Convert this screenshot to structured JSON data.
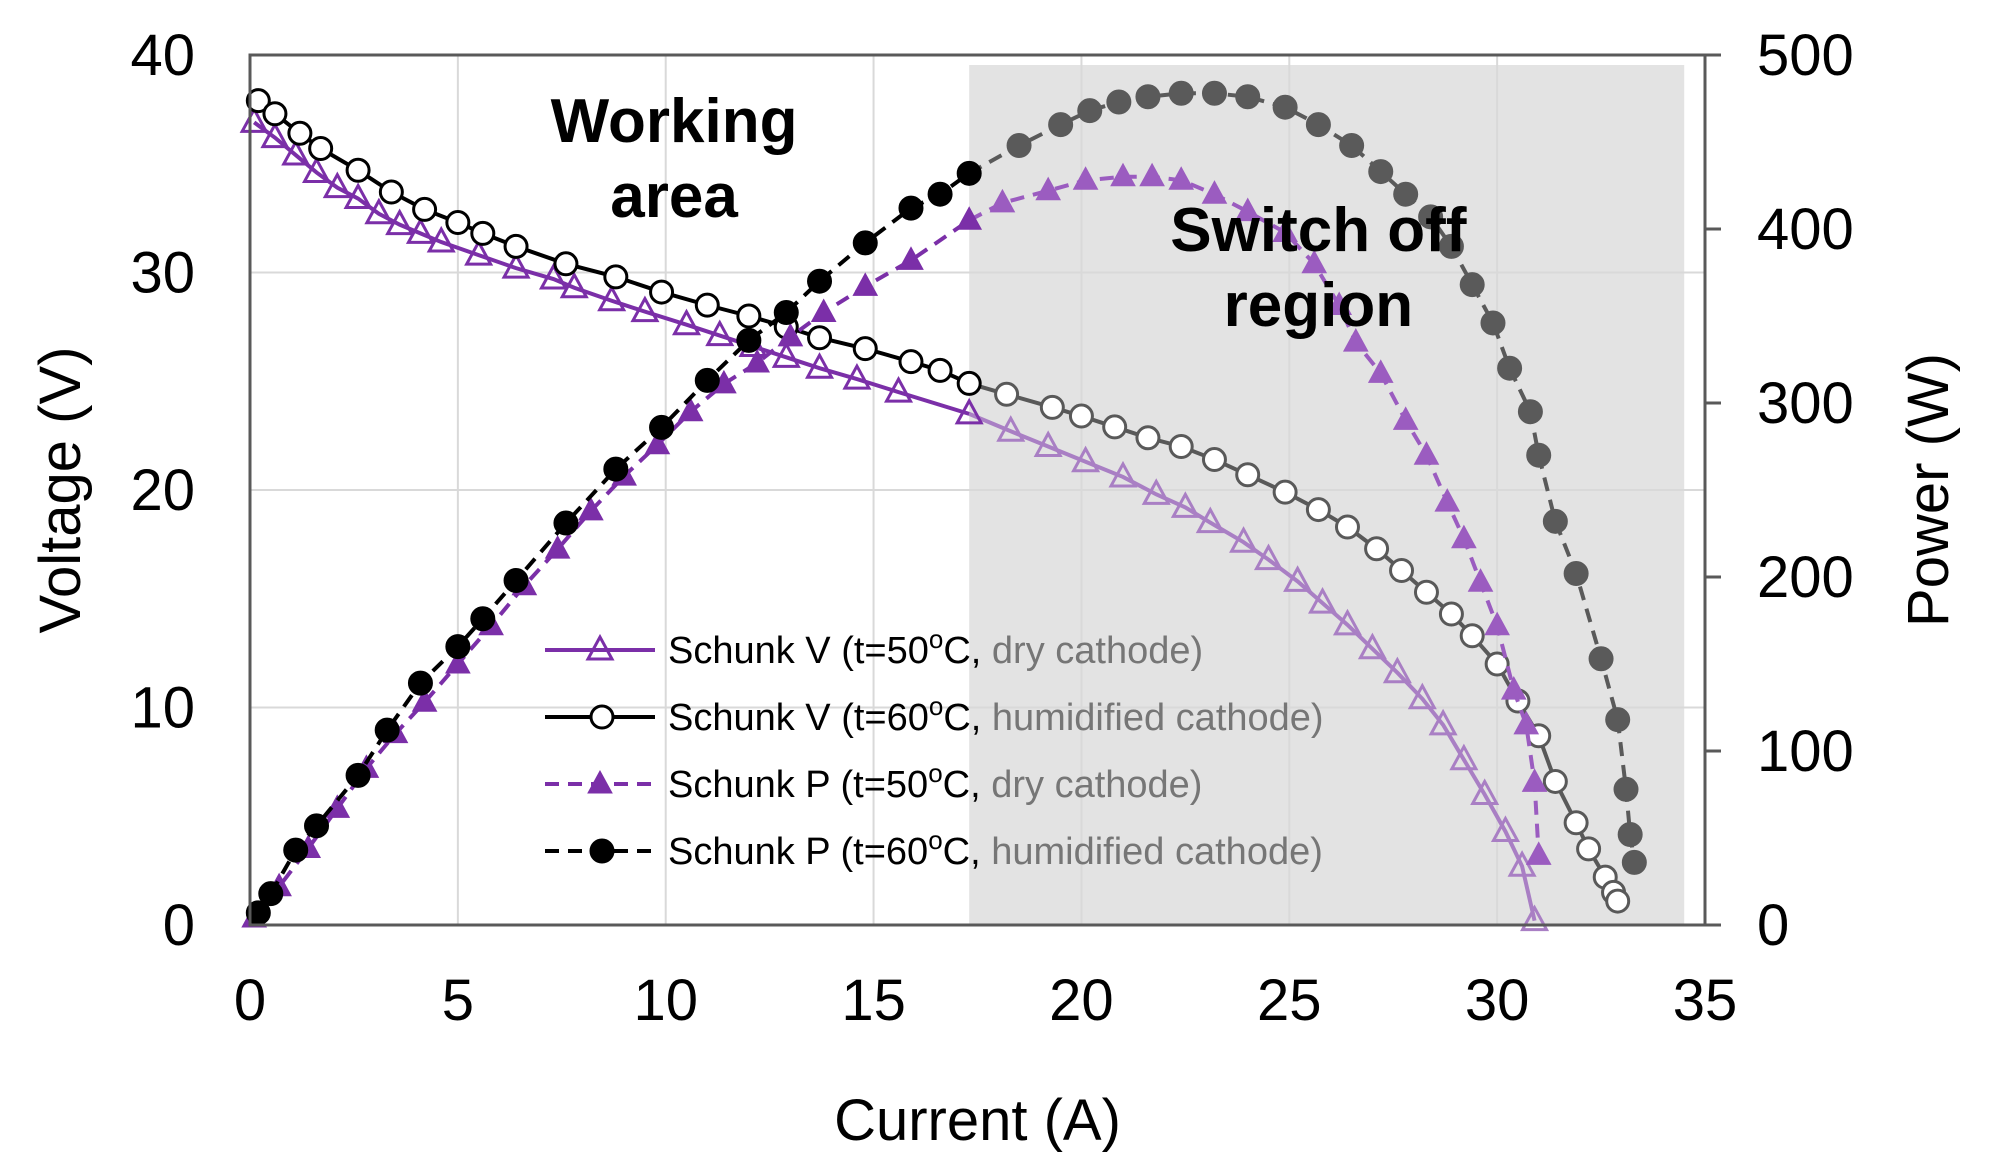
{
  "chart_data": {
    "type": "line",
    "xlabel": "Current (A)",
    "ylabel": "Voltage (V)",
    "y2label": "Power (W)",
    "xlim": [
      0,
      35
    ],
    "ylim": [
      0,
      40
    ],
    "y2lim": [
      0,
      500
    ],
    "xticks": [
      "0",
      "5",
      "10",
      "15",
      "20",
      "25",
      "30",
      "35"
    ],
    "yticks": [
      "0",
      "10",
      "20",
      "30",
      "40"
    ],
    "y2ticks": [
      "0",
      "100",
      "200",
      "300",
      "400",
      "500"
    ],
    "grid": true,
    "legend_position": "lower-center",
    "shaded_region": {
      "x_range": [
        17.3,
        34.5
      ],
      "label": "Switch off region",
      "color": "#e3e3e3"
    },
    "annotations": [
      {
        "text_lines": [
          "Working",
          "area"
        ],
        "x": 10.2,
        "y": 36
      },
      {
        "text_lines": [
          "Switch off",
          "region"
        ],
        "x": 25.7,
        "y": 31
      }
    ],
    "series": [
      {
        "name": "Schunk V (t=50ºC, dry cathode)",
        "legend_main": "Schunk V (t=50",
        "legend_sup": "o",
        "legend_rest": "C, dry cathode)",
        "axis": "left",
        "marker": "open-triangle",
        "line": "solid",
        "color": "#7B2FA8",
        "shaded_color": "#A97FC4",
        "points": [
          [
            0.1,
            36.9
          ],
          [
            0.6,
            36.2
          ],
          [
            1.1,
            35.4
          ],
          [
            1.6,
            34.6
          ],
          [
            2.1,
            33.9
          ],
          [
            2.6,
            33.4
          ],
          [
            3.1,
            32.7
          ],
          [
            3.6,
            32.2
          ],
          [
            4.1,
            31.8
          ],
          [
            4.6,
            31.4
          ],
          [
            5.5,
            30.8
          ],
          [
            6.4,
            30.2
          ],
          [
            7.3,
            29.7
          ],
          [
            7.8,
            29.3
          ],
          [
            8.7,
            28.7
          ],
          [
            9.5,
            28.2
          ],
          [
            10.5,
            27.6
          ],
          [
            11.3,
            27.1
          ],
          [
            12.1,
            26.6
          ],
          [
            12.9,
            26.1
          ],
          [
            13.7,
            25.6
          ],
          [
            14.6,
            25.1
          ],
          [
            15.6,
            24.5
          ],
          [
            17.3,
            23.5
          ],
          [
            18.3,
            22.7
          ],
          [
            19.2,
            22.0
          ],
          [
            20.1,
            21.3
          ],
          [
            21.0,
            20.6
          ],
          [
            21.8,
            19.8
          ],
          [
            22.5,
            19.2
          ],
          [
            23.1,
            18.5
          ],
          [
            23.9,
            17.6
          ],
          [
            24.5,
            16.8
          ],
          [
            25.2,
            15.8
          ],
          [
            25.8,
            14.8
          ],
          [
            26.4,
            13.8
          ],
          [
            27.0,
            12.7
          ],
          [
            27.6,
            11.6
          ],
          [
            28.2,
            10.4
          ],
          [
            28.7,
            9.2
          ],
          [
            29.2,
            7.6
          ],
          [
            29.7,
            6.0
          ],
          [
            30.2,
            4.3
          ],
          [
            30.6,
            2.7
          ],
          [
            30.9,
            0.2
          ]
        ]
      },
      {
        "name": "Schunk V (t=60ºC, humidified cathode)",
        "legend_main": "Schunk V (t=60",
        "legend_sup": "o",
        "legend_rest": "C, humidified cathode)",
        "axis": "left",
        "marker": "open-circle",
        "line": "solid",
        "color": "#000000",
        "shaded_color": "#595959",
        "points": [
          [
            0.2,
            37.9
          ],
          [
            0.6,
            37.3
          ],
          [
            1.2,
            36.4
          ],
          [
            1.7,
            35.7
          ],
          [
            2.6,
            34.7
          ],
          [
            3.4,
            33.7
          ],
          [
            4.2,
            32.9
          ],
          [
            5.0,
            32.3
          ],
          [
            5.6,
            31.8
          ],
          [
            6.4,
            31.2
          ],
          [
            7.6,
            30.4
          ],
          [
            8.8,
            29.8
          ],
          [
            9.9,
            29.1
          ],
          [
            11.0,
            28.5
          ],
          [
            12.0,
            28.0
          ],
          [
            12.9,
            27.5
          ],
          [
            13.7,
            27.0
          ],
          [
            14.8,
            26.5
          ],
          [
            15.9,
            25.9
          ],
          [
            16.6,
            25.5
          ],
          [
            17.3,
            24.9
          ],
          [
            18.2,
            24.4
          ],
          [
            19.3,
            23.8
          ],
          [
            20.0,
            23.4
          ],
          [
            20.8,
            22.9
          ],
          [
            21.6,
            22.4
          ],
          [
            22.4,
            22.0
          ],
          [
            23.2,
            21.4
          ],
          [
            24.0,
            20.7
          ],
          [
            24.9,
            19.9
          ],
          [
            25.7,
            19.1
          ],
          [
            26.4,
            18.3
          ],
          [
            27.1,
            17.3
          ],
          [
            27.7,
            16.3
          ],
          [
            28.3,
            15.3
          ],
          [
            28.9,
            14.3
          ],
          [
            29.4,
            13.3
          ],
          [
            30.0,
            12.0
          ],
          [
            30.5,
            10.3
          ],
          [
            31.0,
            8.7
          ],
          [
            31.4,
            6.6
          ],
          [
            31.9,
            4.7
          ],
          [
            32.2,
            3.5
          ],
          [
            32.6,
            2.2
          ],
          [
            32.8,
            1.5
          ],
          [
            32.9,
            1.1
          ]
        ]
      },
      {
        "name": "Schunk P (t=50ºC, dry cathode)",
        "legend_main": "Schunk P (t=50",
        "legend_sup": "o",
        "legend_rest": "C, dry cathode)",
        "axis": "right",
        "marker": "filled-triangle",
        "line": "dashed",
        "color": "#7B2FA8",
        "shaded_color": "#9B5CC0",
        "points": [
          [
            0.1,
            4
          ],
          [
            0.7,
            22
          ],
          [
            1.4,
            44
          ],
          [
            2.1,
            67
          ],
          [
            2.8,
            90
          ],
          [
            3.5,
            110
          ],
          [
            4.2,
            128
          ],
          [
            5.0,
            150
          ],
          [
            5.8,
            172
          ],
          [
            6.6,
            195
          ],
          [
            7.4,
            216
          ],
          [
            8.2,
            238
          ],
          [
            9.0,
            258
          ],
          [
            9.8,
            276
          ],
          [
            10.6,
            295
          ],
          [
            11.4,
            311
          ],
          [
            12.2,
            323
          ],
          [
            13.0,
            338
          ],
          [
            13.8,
            352
          ],
          [
            14.8,
            367
          ],
          [
            15.9,
            382
          ],
          [
            17.3,
            405
          ],
          [
            18.1,
            415
          ],
          [
            19.2,
            422
          ],
          [
            20.1,
            428
          ],
          [
            21.0,
            430
          ],
          [
            21.7,
            430
          ],
          [
            22.4,
            428
          ],
          [
            23.2,
            420
          ],
          [
            24.0,
            410
          ],
          [
            24.9,
            398
          ],
          [
            25.6,
            380
          ],
          [
            26.2,
            356
          ],
          [
            26.6,
            335
          ],
          [
            27.2,
            317
          ],
          [
            27.8,
            290
          ],
          [
            28.3,
            270
          ],
          [
            28.8,
            243
          ],
          [
            29.2,
            222
          ],
          [
            29.6,
            197
          ],
          [
            30.0,
            172
          ],
          [
            30.4,
            135
          ],
          [
            30.7,
            115
          ],
          [
            30.9,
            82
          ],
          [
            31.0,
            40
          ]
        ]
      },
      {
        "name": "Schunk P (t=60ºC, humidified cathode)",
        "legend_main": "Schunk P (t=60",
        "legend_sup": "o",
        "legend_rest": "C, humidified cathode)",
        "axis": "right",
        "marker": "filled-circle",
        "line": "dashed",
        "color": "#000000",
        "shaded_color": "#5a5a5a",
        "points": [
          [
            0.2,
            7
          ],
          [
            0.5,
            18
          ],
          [
            1.1,
            43
          ],
          [
            1.6,
            57
          ],
          [
            2.6,
            86
          ],
          [
            3.3,
            112
          ],
          [
            4.1,
            139
          ],
          [
            5.0,
            160
          ],
          [
            5.6,
            176
          ],
          [
            6.4,
            198
          ],
          [
            7.6,
            231
          ],
          [
            8.8,
            262
          ],
          [
            9.9,
            286
          ],
          [
            11.0,
            313
          ],
          [
            12.0,
            336
          ],
          [
            12.9,
            352
          ],
          [
            13.7,
            370
          ],
          [
            14.8,
            392
          ],
          [
            15.9,
            412
          ],
          [
            16.6,
            420
          ],
          [
            17.3,
            432
          ],
          [
            18.5,
            448
          ],
          [
            19.5,
            460
          ],
          [
            20.2,
            468
          ],
          [
            20.9,
            473
          ],
          [
            21.6,
            476
          ],
          [
            22.4,
            478
          ],
          [
            23.2,
            478
          ],
          [
            24.0,
            476
          ],
          [
            24.9,
            470
          ],
          [
            25.7,
            460
          ],
          [
            26.5,
            448
          ],
          [
            27.2,
            433
          ],
          [
            27.8,
            420
          ],
          [
            28.4,
            407
          ],
          [
            28.9,
            390
          ],
          [
            29.4,
            368
          ],
          [
            29.9,
            346
          ],
          [
            30.3,
            320
          ],
          [
            30.8,
            295
          ],
          [
            31.0,
            270
          ],
          [
            31.4,
            232
          ],
          [
            31.9,
            202
          ],
          [
            32.5,
            153
          ],
          [
            32.9,
            118
          ],
          [
            33.1,
            78
          ],
          [
            33.2,
            52
          ],
          [
            33.3,
            36
          ]
        ]
      }
    ]
  }
}
